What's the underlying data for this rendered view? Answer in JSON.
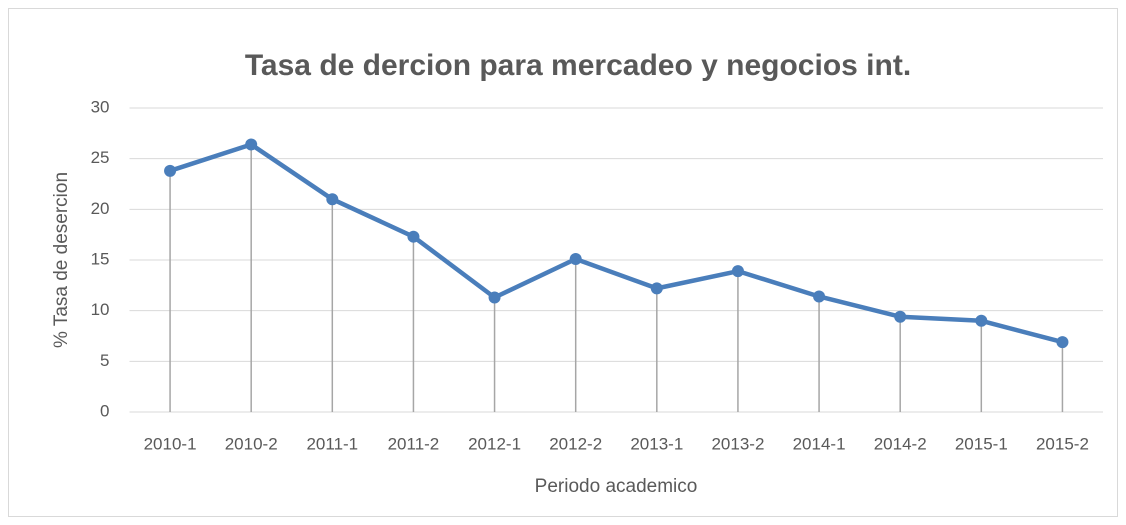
{
  "chart_data": {
    "type": "line",
    "title": "Tasa de dercion para mercadeo y negocios int.",
    "x_label": "Periodo academico",
    "y_label": "% Tasa de desercion",
    "categories": [
      "2010-1",
      "2010-2",
      "2011-1",
      "2011-2",
      "2012-1",
      "2012-2",
      "2013-1",
      "2013-2",
      "2014-1",
      "2014-2",
      "2015-1",
      "2015-2"
    ],
    "series": [
      {
        "name": "Tasa de desercion",
        "color": "#4a7ebb",
        "values": [
          23.8,
          26.4,
          21.0,
          17.3,
          11.3,
          15.1,
          12.2,
          13.9,
          11.4,
          9.4,
          9.0,
          6.9
        ]
      }
    ],
    "ylim": [
      0,
      30
    ],
    "yticks": [
      0,
      5,
      10,
      15,
      20,
      25,
      30
    ],
    "grid": true,
    "drop_lines": true
  }
}
